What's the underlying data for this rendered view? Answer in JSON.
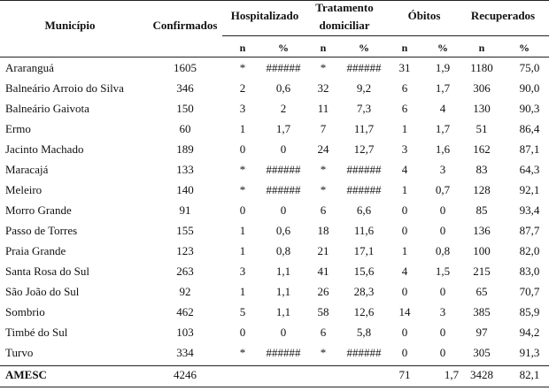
{
  "headers": {
    "municipio": "Município",
    "confirmados": "Confirmados",
    "hospitalizado": "Hospitalizado",
    "tratamento_line1": "Tratamento",
    "tratamento_line2": "domiciliar",
    "obitos": "Óbitos",
    "recuperados": "Recuperados",
    "sub_n": "n",
    "sub_pct": "%"
  },
  "rows": [
    {
      "municipio": "Araranguá",
      "confirmados": "1605",
      "hosp_n": "*",
      "hosp_pct": "######",
      "trat_n": "*",
      "trat_pct": "######",
      "obit_n": "31",
      "obit_pct": "1,9",
      "rec_n": "1180",
      "rec_pct": "75,0"
    },
    {
      "municipio": "Balneário Arroio do Silva",
      "confirmados": "346",
      "hosp_n": "2",
      "hosp_pct": "0,6",
      "trat_n": "32",
      "trat_pct": "9,2",
      "obit_n": "6",
      "obit_pct": "1,7",
      "rec_n": "306",
      "rec_pct": "90,0"
    },
    {
      "municipio": "Balneário Gaivota",
      "confirmados": "150",
      "hosp_n": "3",
      "hosp_pct": "2",
      "trat_n": "11",
      "trat_pct": "7,3",
      "obit_n": "6",
      "obit_pct": "4",
      "rec_n": "130",
      "rec_pct": "90,3"
    },
    {
      "municipio": "Ermo",
      "confirmados": "60",
      "hosp_n": "1",
      "hosp_pct": "1,7",
      "trat_n": "7",
      "trat_pct": "11,7",
      "obit_n": "1",
      "obit_pct": "1,7",
      "rec_n": "51",
      "rec_pct": "86,4"
    },
    {
      "municipio": "Jacinto Machado",
      "confirmados": "189",
      "hosp_n": "0",
      "hosp_pct": "0",
      "trat_n": "24",
      "trat_pct": "12,7",
      "obit_n": "3",
      "obit_pct": "1,6",
      "rec_n": "162",
      "rec_pct": "87,1"
    },
    {
      "municipio": "Maracajá",
      "confirmados": "133",
      "hosp_n": "*",
      "hosp_pct": "######",
      "trat_n": "*",
      "trat_pct": "######",
      "obit_n": "4",
      "obit_pct": "3",
      "rec_n": "83",
      "rec_pct": "64,3"
    },
    {
      "municipio": "Meleiro",
      "confirmados": "140",
      "hosp_n": "*",
      "hosp_pct": "######",
      "trat_n": "*",
      "trat_pct": "######",
      "obit_n": "1",
      "obit_pct": "0,7",
      "rec_n": "128",
      "rec_pct": "92,1"
    },
    {
      "municipio": "Morro Grande",
      "confirmados": "91",
      "hosp_n": "0",
      "hosp_pct": "0",
      "trat_n": "6",
      "trat_pct": "6,6",
      "obit_n": "0",
      "obit_pct": "0",
      "rec_n": "85",
      "rec_pct": "93,4"
    },
    {
      "municipio": "Passo de Torres",
      "confirmados": "155",
      "hosp_n": "1",
      "hosp_pct": "0,6",
      "trat_n": "18",
      "trat_pct": "11,6",
      "obit_n": "0",
      "obit_pct": "0",
      "rec_n": "136",
      "rec_pct": "87,7"
    },
    {
      "municipio": "Praia Grande",
      "confirmados": "123",
      "hosp_n": "1",
      "hosp_pct": "0,8",
      "trat_n": "21",
      "trat_pct": "17,1",
      "obit_n": "1",
      "obit_pct": "0,8",
      "rec_n": "100",
      "rec_pct": "82,0"
    },
    {
      "municipio": "Santa Rosa do Sul",
      "confirmados": "263",
      "hosp_n": "3",
      "hosp_pct": "1,1",
      "trat_n": "41",
      "trat_pct": "15,6",
      "obit_n": "4",
      "obit_pct": "1,5",
      "rec_n": "215",
      "rec_pct": "83,0"
    },
    {
      "municipio": "São João do Sul",
      "confirmados": "92",
      "hosp_n": "1",
      "hosp_pct": "1,1",
      "trat_n": "26",
      "trat_pct": "28,3",
      "obit_n": "0",
      "obit_pct": "0",
      "rec_n": "65",
      "rec_pct": "70,7"
    },
    {
      "municipio": "Sombrio",
      "confirmados": "462",
      "hosp_n": "5",
      "hosp_pct": "1,1",
      "trat_n": "58",
      "trat_pct": "12,6",
      "obit_n": "14",
      "obit_pct": "3",
      "rec_n": "385",
      "rec_pct": "85,9"
    },
    {
      "municipio": "Timbé do Sul",
      "confirmados": "103",
      "hosp_n": "0",
      "hosp_pct": "0",
      "trat_n": "6",
      "trat_pct": "5,8",
      "obit_n": "0",
      "obit_pct": "0",
      "rec_n": "97",
      "rec_pct": "94,2"
    },
    {
      "municipio": "Turvo",
      "confirmados": "334",
      "hosp_n": "*",
      "hosp_pct": "######",
      "trat_n": "*",
      "trat_pct": "######",
      "obit_n": "0",
      "obit_pct": "0",
      "rec_n": "305",
      "rec_pct": "91,3"
    }
  ],
  "total": {
    "municipio": "AMESC",
    "confirmados": "4246",
    "obit_n": "71",
    "obit_pct": "1,7",
    "rec_n": "3428",
    "rec_pct": "82,1"
  }
}
